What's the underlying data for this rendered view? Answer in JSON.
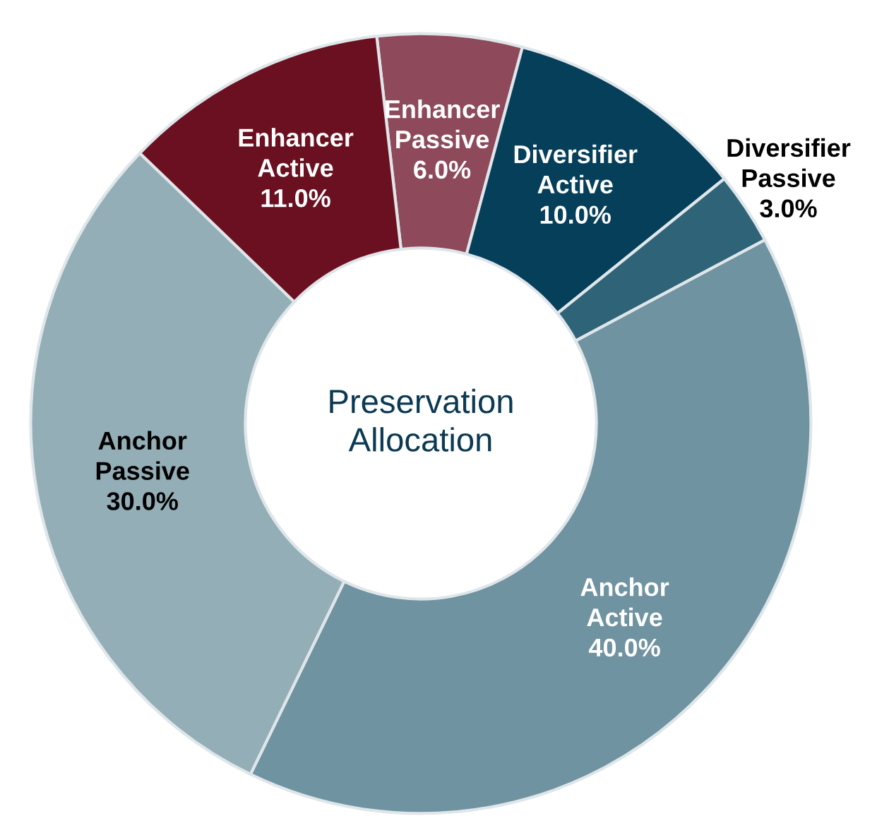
{
  "chart_data": {
    "type": "donut",
    "title": "Preservation Allocation",
    "categories": [
      "Enhancer Passive",
      "Diversifier Active",
      "Diversifier Passive",
      "Anchor Active",
      "Anchor Passive",
      "Enhancer Active"
    ],
    "values": [
      6.0,
      10.0,
      3.0,
      40.0,
      30.0,
      11.0
    ],
    "value_labels": [
      "6.0%",
      "10.0%",
      "3.0%",
      "40.0%",
      "30.0%",
      "11.0%"
    ],
    "colors": [
      "#8e4a5a",
      "#063f5a",
      "#2f6478",
      "#6f93a0",
      "#93aeb6",
      "#6b1020"
    ]
  }
}
